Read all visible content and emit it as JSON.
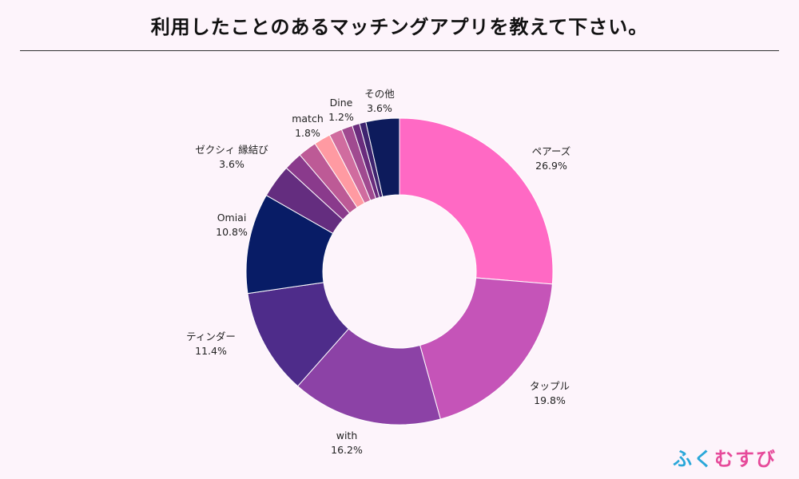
{
  "page": {
    "background": "#fdf4fb",
    "brand": {
      "chars": [
        "ふ",
        "く",
        "む",
        "す",
        "び"
      ],
      "colors": [
        "#2aa7d9",
        "#2aa7d9",
        "#e64a9a",
        "#e64a9a",
        "#e64a9a"
      ]
    }
  },
  "chart_data": {
    "type": "pie",
    "title": "利用したことのあるマッチングアプリを教えて下さい。",
    "donut": true,
    "start": "12 o'clock",
    "direction": "clockwise",
    "slices": [
      {
        "name": "ペアーズ",
        "value": 26.9,
        "label": "26.9%",
        "color": "#ff69c4"
      },
      {
        "name": "タップル",
        "value": 19.8,
        "label": "19.8%",
        "color": "#c554b8"
      },
      {
        "name": "with",
        "value": 16.2,
        "label": "16.2%",
        "color": "#8c42a6"
      },
      {
        "name": "ティンダー",
        "value": 11.4,
        "label": "11.4%",
        "color": "#4e2c8a"
      },
      {
        "name": "Omiai",
        "value": 10.8,
        "label": "10.8%",
        "color": "#081c66"
      },
      {
        "name": "ゼクシィ 縁結び",
        "value": 3.6,
        "label": "3.6%",
        "color": "#642d7f"
      },
      {
        "name": "",
        "value": 2.0,
        "label": "",
        "color": "#8a3a8c"
      },
      {
        "name": "",
        "value": 2.0,
        "label": "",
        "color": "#bd5a96"
      },
      {
        "name": "match",
        "value": 1.8,
        "label": "1.8%",
        "color": "#ff9aa2"
      },
      {
        "name": "",
        "value": 1.4,
        "label": "",
        "color": "#d06c9f"
      },
      {
        "name": "Dine",
        "value": 1.2,
        "label": "1.2%",
        "color": "#a04a90"
      },
      {
        "name": "",
        "value": 0.8,
        "label": "",
        "color": "#6a2c7d"
      },
      {
        "name": "",
        "value": 0.7,
        "label": "",
        "color": "#3e2470"
      },
      {
        "name": "その他",
        "value": 3.6,
        "label": "3.6%",
        "color": "#0d1b5c"
      }
    ]
  }
}
